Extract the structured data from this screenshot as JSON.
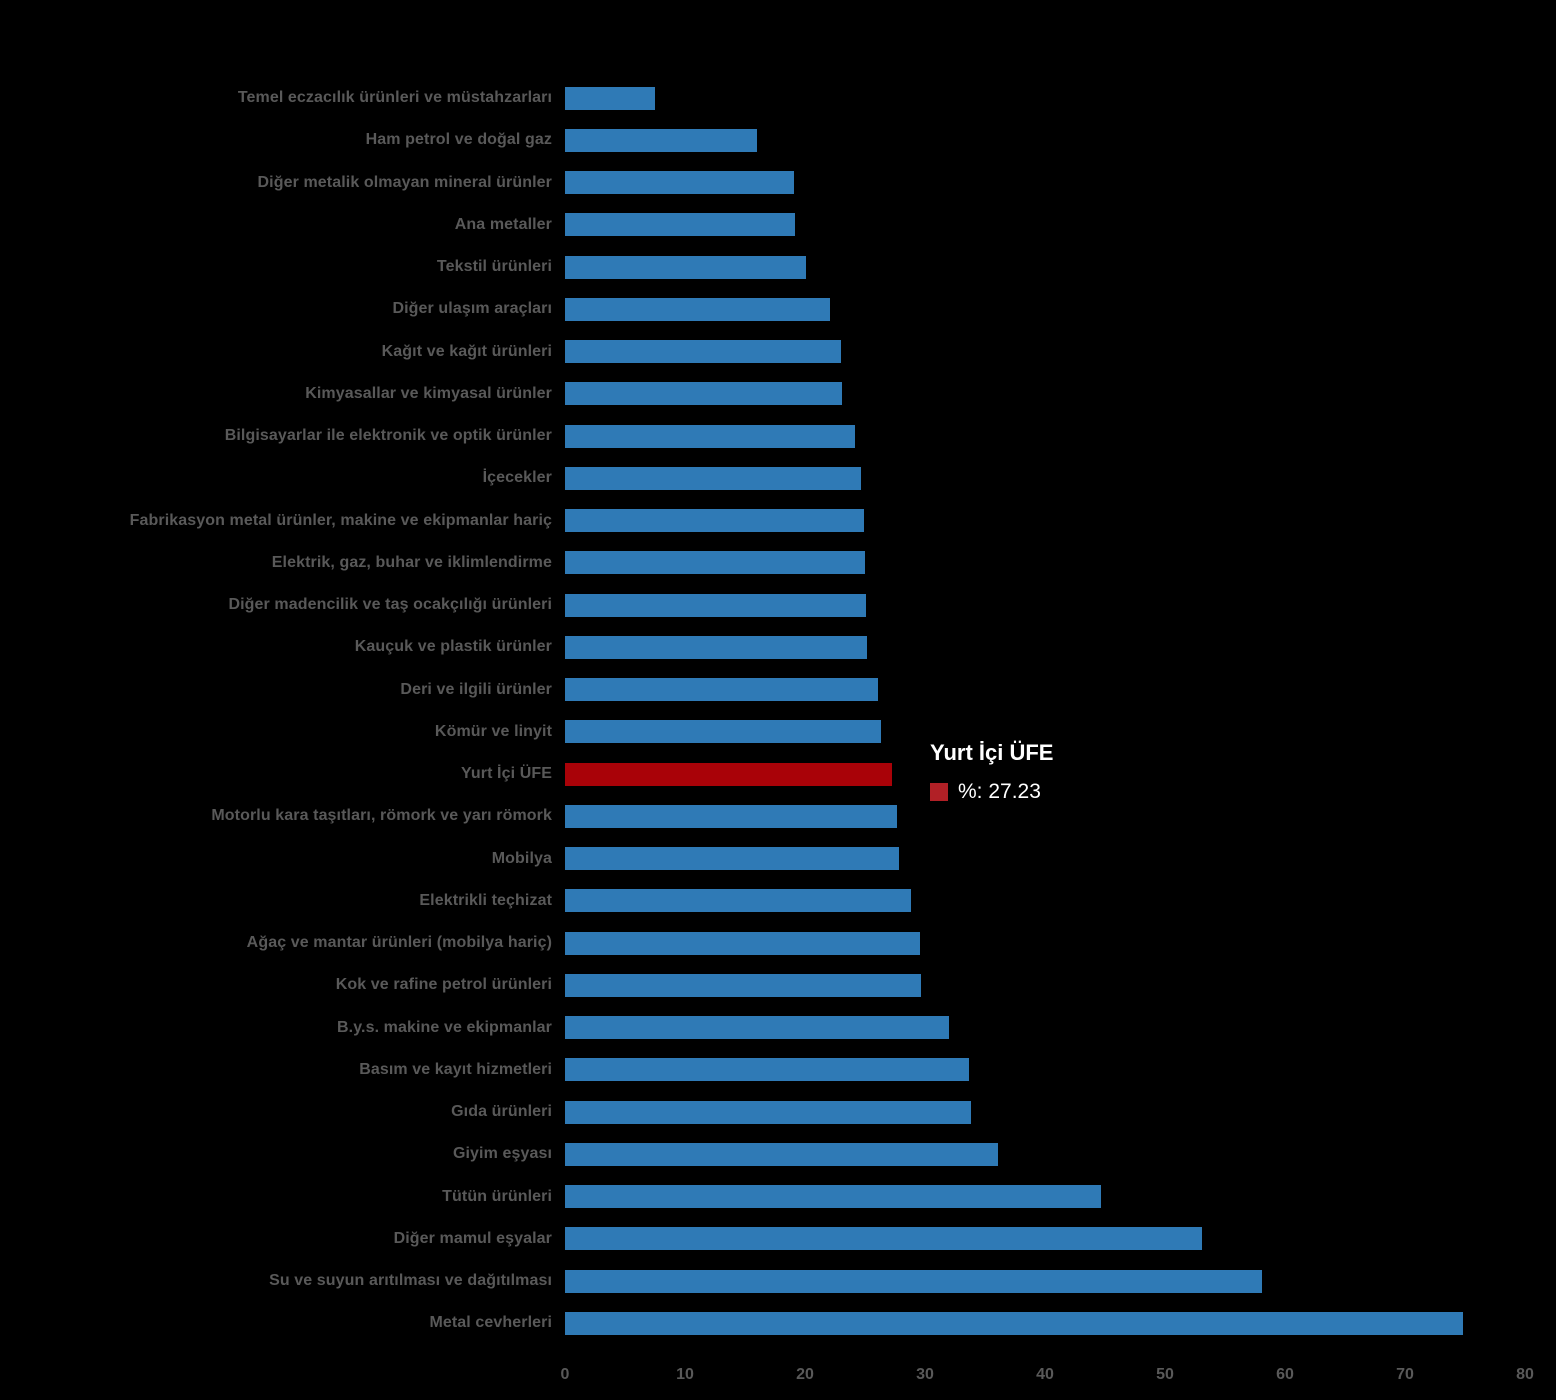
{
  "colors": {
    "background": "#000000",
    "bar_blue": "#2F7AB6",
    "bar_red": "#A90208",
    "label_gray": "#595959",
    "tooltip_text": "#FFFFFF",
    "tooltip_swatch_red": "#B12026"
  },
  "tooltip": {
    "title": "Yurt İçi ÜFE",
    "value_label": "%: 27.23"
  },
  "chart_data": {
    "type": "bar",
    "orientation": "horizontal",
    "title": "",
    "xlabel": "",
    "ylabel": "",
    "xlim": [
      0,
      80
    ],
    "x_ticks": [
      0,
      10,
      20,
      30,
      40,
      50,
      60,
      70,
      80
    ],
    "grid": false,
    "legend": false,
    "highlight_index": 16,
    "categories": [
      "Temel eczacılık ürünleri ve müstahzarları",
      "Ham petrol ve doğal gaz",
      "Diğer metalik olmayan mineral ürünler",
      "Ana metaller",
      "Tekstil ürünleri",
      "Diğer ulaşım araçları",
      "Kağıt ve kağıt ürünleri",
      "Kimyasallar ve kimyasal ürünler",
      "Bilgisayarlar ile elektronik ve optik ürünler",
      "İçecekler",
      "Fabrikasyon metal ürünler, makine ve ekipmanlar hariç",
      "Elektrik, gaz, buhar ve iklimlendirme",
      "Diğer madencilik ve taş ocakçılığı ürünleri",
      "Kauçuk ve plastik ürünler",
      "Deri ve ilgili ürünler",
      "Kömür ve linyit",
      "Yurt İçi ÜFE",
      "Motorlu kara taşıtları, römork ve yarı römork",
      "Mobilya",
      "Elektrikli teçhizat",
      "Ağaç ve mantar ürünleri (mobilya hariç)",
      "Kok ve rafine petrol ürünleri",
      "B.y.s. makine ve ekipmanlar",
      "Basım ve kayıt hizmetleri",
      "Gıda ürünleri",
      "Giyim eşyası",
      "Tütün ürünleri",
      "Diğer mamul eşyalar",
      "Su ve suyun arıtılması ve dağıtılması",
      "Metal cevherleri"
    ],
    "values": [
      7.5,
      16.0,
      19.1,
      19.2,
      20.1,
      22.1,
      23.0,
      23.1,
      24.2,
      24.7,
      24.9,
      25.0,
      25.1,
      25.2,
      26.1,
      26.3,
      27.23,
      27.7,
      27.8,
      28.8,
      29.6,
      29.7,
      32.0,
      33.7,
      33.8,
      36.1,
      44.7,
      53.1,
      58.1,
      74.8
    ]
  }
}
